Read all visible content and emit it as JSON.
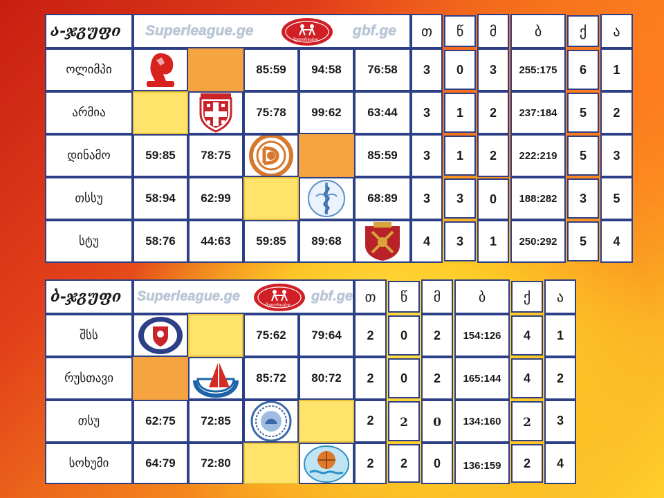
{
  "header_labels": [
    "თ",
    "წ",
    "მ",
    "ბ",
    "ქ",
    "ა"
  ],
  "banner": {
    "left_site": "Superleague.ge",
    "right_site": "gbf.ge",
    "emblem_text": "მეფორიაბეი"
  },
  "group_a": {
    "title": "ა-ჯგუფი",
    "rows": [
      {
        "team": "ოლიმპი",
        "logo": "olimpi-lion-logo",
        "cells": [
          "",
          "",
          "85:59",
          "94:58",
          "76:58"
        ],
        "stats": [
          "3",
          "0",
          "3",
          "255:175",
          "6",
          "1"
        ]
      },
      {
        "team": "არმია",
        "logo": "armia-cross-shield-logo",
        "cells": [
          "",
          "",
          "75:78",
          "99:62",
          "63:44"
        ],
        "stats": [
          "3",
          "1",
          "2",
          "237:184",
          "5",
          "2"
        ]
      },
      {
        "team": "დინამო",
        "logo": "dinamo-tbilisi-logo",
        "cells": [
          "59:85",
          "78:75",
          "",
          "",
          "85:59"
        ],
        "stats": [
          "3",
          "1",
          "2",
          "222:219",
          "5",
          "3"
        ]
      },
      {
        "team": "თსსუ",
        "logo": "tssu-medical-logo",
        "cells": [
          "58:94",
          "62:99",
          "",
          "",
          "68:89"
        ],
        "stats": [
          "3",
          "3",
          "0",
          "188:282",
          "3",
          "5"
        ]
      },
      {
        "team": "სტუ",
        "logo": "stu-university-emblem",
        "cells": [
          "58:76",
          "44:63",
          "59:85",
          "89:68",
          ""
        ],
        "stats": [
          "4",
          "3",
          "1",
          "250:292",
          "5",
          "4"
        ]
      }
    ]
  },
  "group_b": {
    "title": "ბ-ჯგუფი",
    "rows": [
      {
        "team": "შსს",
        "logo": "shss-police-emblem",
        "cells": [
          "",
          "",
          "75:62",
          "79:64"
        ],
        "stats": [
          "2",
          "0",
          "2",
          "154:126",
          "4",
          "1"
        ]
      },
      {
        "team": "რუსთავი",
        "logo": "rustavi-sail-logo",
        "cells": [
          "",
          "",
          "85:72",
          "80:72"
        ],
        "stats": [
          "2",
          "0",
          "2",
          "165:144",
          "4",
          "2"
        ]
      },
      {
        "team": "თსუ",
        "logo": "tsu-university-seal",
        "cells": [
          "62:75",
          "72:85",
          "",
          ""
        ],
        "stats": [
          "2",
          "2",
          "0",
          "134:160",
          "2",
          "3"
        ]
      },
      {
        "team": "სოხუმი",
        "logo": "sokhumi-ball-logo",
        "cells": [
          "64:79",
          "72:80",
          "",
          ""
        ],
        "stats": [
          "2",
          "2",
          "0",
          "136:159",
          "2",
          "4"
        ]
      }
    ]
  },
  "colors": {
    "border": "#2d3f86",
    "diagonal_yellow": "#ffe36a",
    "diagonal_orange": "#f5a440",
    "banner_text": "#b9c6d6",
    "emblem_red": "#d01f25"
  }
}
